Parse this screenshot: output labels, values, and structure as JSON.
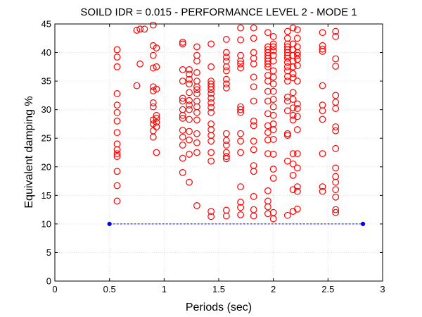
{
  "chart_data": {
    "type": "scatter",
    "title": "SOILD IDR = 0.015 - PERFORMANCE LEVEL 2 - MODE 1",
    "xlabel": "Periods (sec)",
    "ylabel": "Equivalent damping %",
    "xlim": [
      0,
      3
    ],
    "ylim": [
      0,
      45
    ],
    "xticks": [
      "0",
      "0.5",
      "1",
      "1.5",
      "2",
      "2.5",
      "3"
    ],
    "yticks": [
      "0",
      "5",
      "10",
      "15",
      "20",
      "25",
      "30",
      "35",
      "40",
      "45"
    ],
    "grid": true,
    "colors": {
      "scatter": "#ff0000",
      "line": "#0000ff"
    },
    "series": [
      {
        "type": "scatter",
        "marker": "circle-open",
        "color": "#ff0000",
        "points": [
          [
            0.57,
            40.5
          ],
          [
            0.57,
            39.2
          ],
          [
            0.57,
            37.5
          ],
          [
            0.57,
            32.8
          ],
          [
            0.57,
            30.8
          ],
          [
            0.57,
            29.5
          ],
          [
            0.57,
            28
          ],
          [
            0.57,
            26
          ],
          [
            0.57,
            24
          ],
          [
            0.57,
            23
          ],
          [
            0.57,
            22.3
          ],
          [
            0.57,
            21.8
          ],
          [
            0.57,
            19.2
          ],
          [
            0.57,
            16.7
          ],
          [
            0.57,
            14
          ],
          [
            0.75,
            34.2
          ],
          [
            0.75,
            43.9
          ],
          [
            0.78,
            44.1
          ],
          [
            0.78,
            38
          ],
          [
            0.82,
            44.1
          ],
          [
            0.9,
            44.8
          ],
          [
            0.9,
            41.2
          ],
          [
            0.9,
            39.5
          ],
          [
            0.9,
            37.3
          ],
          [
            0.9,
            34
          ],
          [
            0.9,
            33.3
          ],
          [
            0.9,
            31.2
          ],
          [
            0.9,
            30.5
          ],
          [
            0.9,
            28.2
          ],
          [
            0.9,
            27.5
          ],
          [
            0.9,
            26.3
          ],
          [
            0.9,
            25.2
          ],
          [
            0.93,
            40.8
          ],
          [
            0.93,
            37.5
          ],
          [
            0.93,
            33.6
          ],
          [
            0.93,
            29
          ],
          [
            0.93,
            28.5
          ],
          [
            0.93,
            27.8
          ],
          [
            0.93,
            27
          ],
          [
            0.93,
            22.5
          ],
          [
            1.17,
            41.8
          ],
          [
            1.17,
            37
          ],
          [
            1.17,
            35
          ],
          [
            1.17,
            32
          ],
          [
            1.17,
            31.5
          ],
          [
            1.17,
            30
          ],
          [
            1.17,
            29
          ],
          [
            1.17,
            28.5
          ],
          [
            1.17,
            26.4
          ],
          [
            1.17,
            25.2
          ],
          [
            1.17,
            23.8
          ],
          [
            1.17,
            21.5
          ],
          [
            1.17,
            19
          ],
          [
            1.17,
            41.5
          ],
          [
            1.23,
            37
          ],
          [
            1.23,
            36.2
          ],
          [
            1.23,
            35.3
          ],
          [
            1.23,
            34.5
          ],
          [
            1.23,
            33
          ],
          [
            1.23,
            31.6
          ],
          [
            1.23,
            30.8
          ],
          [
            1.23,
            30
          ],
          [
            1.23,
            28.3
          ],
          [
            1.23,
            26.2
          ],
          [
            1.23,
            24.7
          ],
          [
            1.23,
            22.2
          ],
          [
            1.23,
            17.3
          ],
          [
            1.3,
            41
          ],
          [
            1.3,
            39.5
          ],
          [
            1.3,
            38.5
          ],
          [
            1.3,
            36.5
          ],
          [
            1.3,
            35
          ],
          [
            1.3,
            34
          ],
          [
            1.3,
            33.5
          ],
          [
            1.3,
            32.8
          ],
          [
            1.3,
            31.5
          ],
          [
            1.3,
            30.5
          ],
          [
            1.3,
            29.5
          ],
          [
            1.3,
            28.2
          ],
          [
            1.3,
            25.8
          ],
          [
            1.3,
            24.2
          ],
          [
            1.3,
            22.5
          ],
          [
            1.3,
            13.2
          ],
          [
            1.43,
            41.5
          ],
          [
            1.43,
            37.5
          ],
          [
            1.43,
            35
          ],
          [
            1.43,
            34.5
          ],
          [
            1.43,
            34
          ],
          [
            1.43,
            33.5
          ],
          [
            1.43,
            32.8
          ],
          [
            1.43,
            32
          ],
          [
            1.43,
            31.2
          ],
          [
            1.43,
            30.4
          ],
          [
            1.43,
            29.5
          ],
          [
            1.43,
            27.5
          ],
          [
            1.43,
            26.5
          ],
          [
            1.43,
            25.5
          ],
          [
            1.43,
            24.5
          ],
          [
            1.43,
            22.5
          ],
          [
            1.43,
            21
          ],
          [
            1.43,
            12.2
          ],
          [
            1.43,
            11.3
          ],
          [
            1.57,
            42.3
          ],
          [
            1.57,
            40
          ],
          [
            1.57,
            39.2
          ],
          [
            1.57,
            38.5
          ],
          [
            1.57,
            37.5
          ],
          [
            1.57,
            36.8
          ],
          [
            1.57,
            35.3
          ],
          [
            1.57,
            34.5
          ],
          [
            1.57,
            33.8
          ],
          [
            1.57,
            25.8
          ],
          [
            1.57,
            24.6
          ],
          [
            1.57,
            23.8
          ],
          [
            1.57,
            22.5
          ],
          [
            1.57,
            21.8
          ],
          [
            1.57,
            21.4
          ],
          [
            1.57,
            12.4
          ],
          [
            1.57,
            11.4
          ],
          [
            1.7,
            44.3
          ],
          [
            1.7,
            42.2
          ],
          [
            1.7,
            39.5
          ],
          [
            1.7,
            38.5
          ],
          [
            1.7,
            38
          ],
          [
            1.7,
            37.3
          ],
          [
            1.7,
            30.5
          ],
          [
            1.7,
            30
          ],
          [
            1.7,
            29.5
          ],
          [
            1.7,
            25.8
          ],
          [
            1.7,
            24.5
          ],
          [
            1.7,
            22.5
          ],
          [
            1.7,
            16.5
          ],
          [
            1.7,
            13.8
          ],
          [
            1.7,
            12.9
          ],
          [
            1.7,
            11.6
          ],
          [
            1.82,
            44.3
          ],
          [
            1.82,
            42.5
          ],
          [
            1.82,
            40
          ],
          [
            1.82,
            39
          ],
          [
            1.82,
            38
          ],
          [
            1.82,
            35.7
          ],
          [
            1.82,
            34
          ],
          [
            1.82,
            31.5
          ],
          [
            1.82,
            28
          ],
          [
            1.82,
            27.2
          ],
          [
            1.82,
            24.5
          ],
          [
            1.82,
            23
          ],
          [
            1.82,
            20.2
          ],
          [
            1.82,
            19.2
          ],
          [
            1.82,
            14.8
          ],
          [
            1.82,
            12.5
          ],
          [
            1.82,
            11.4
          ],
          [
            1.95,
            43.5
          ],
          [
            1.95,
            41
          ],
          [
            1.95,
            40.5
          ],
          [
            1.95,
            40
          ],
          [
            1.95,
            39.5
          ],
          [
            1.95,
            39
          ],
          [
            1.95,
            38.5
          ],
          [
            1.95,
            38
          ],
          [
            1.95,
            37.5
          ],
          [
            1.95,
            36
          ],
          [
            1.95,
            35
          ],
          [
            1.95,
            33.2
          ],
          [
            1.95,
            31.5
          ],
          [
            1.95,
            29.3
          ],
          [
            1.95,
            27.2
          ],
          [
            1.95,
            26
          ],
          [
            1.95,
            24.7
          ],
          [
            1.95,
            22.3
          ],
          [
            1.95,
            15.8
          ],
          [
            1.95,
            14
          ],
          [
            1.95,
            13
          ],
          [
            1.95,
            11.8
          ],
          [
            2.0,
            42.8
          ],
          [
            2.0,
            41.5
          ],
          [
            2.0,
            41
          ],
          [
            2.0,
            40.3
          ],
          [
            2.0,
            39.5
          ],
          [
            2.0,
            38.5
          ],
          [
            2.0,
            36.8
          ],
          [
            2.0,
            35.7
          ],
          [
            2.0,
            34.5
          ],
          [
            2.0,
            33.2
          ],
          [
            2.0,
            31.8
          ],
          [
            2.0,
            30.5
          ],
          [
            2.0,
            29
          ],
          [
            2.0,
            27.5
          ],
          [
            2.0,
            26.5
          ],
          [
            2.0,
            24.8
          ],
          [
            2.0,
            22.2
          ],
          [
            2.0,
            19.6
          ],
          [
            2.0,
            18
          ],
          [
            2.0,
            12
          ],
          [
            2.0,
            10.9
          ],
          [
            2.13,
            43.7
          ],
          [
            2.13,
            42.5
          ],
          [
            2.13,
            41.5
          ],
          [
            2.13,
            41
          ],
          [
            2.13,
            40.5
          ],
          [
            2.13,
            40
          ],
          [
            2.13,
            39.5
          ],
          [
            2.13,
            39
          ],
          [
            2.13,
            38.3
          ],
          [
            2.13,
            37.5
          ],
          [
            2.13,
            36.8
          ],
          [
            2.13,
            35.8
          ],
          [
            2.13,
            35
          ],
          [
            2.13,
            32.2
          ],
          [
            2.13,
            31.5
          ],
          [
            2.13,
            29.8
          ],
          [
            2.13,
            25.8
          ],
          [
            2.13,
            25.5
          ],
          [
            2.13,
            21
          ],
          [
            2.13,
            11.5
          ],
          [
            2.18,
            44.3
          ],
          [
            2.18,
            41.5
          ],
          [
            2.18,
            40.5
          ],
          [
            2.18,
            39.5
          ],
          [
            2.18,
            38.5
          ],
          [
            2.18,
            37.5
          ],
          [
            2.18,
            36.3
          ],
          [
            2.18,
            35.6
          ],
          [
            2.18,
            33
          ],
          [
            2.18,
            31.8
          ],
          [
            2.18,
            30.3
          ],
          [
            2.18,
            29
          ],
          [
            2.18,
            28.2
          ],
          [
            2.18,
            22.3
          ],
          [
            2.18,
            20.5
          ],
          [
            2.18,
            18.5
          ],
          [
            2.18,
            16
          ],
          [
            2.18,
            12.2
          ],
          [
            2.22,
            44
          ],
          [
            2.22,
            42.5
          ],
          [
            2.22,
            41
          ],
          [
            2.22,
            40
          ],
          [
            2.22,
            39.5
          ],
          [
            2.22,
            38.8
          ],
          [
            2.22,
            37.7
          ],
          [
            2.22,
            35
          ],
          [
            2.22,
            31
          ],
          [
            2.22,
            30.2
          ],
          [
            2.22,
            28.8
          ],
          [
            2.22,
            26.5
          ],
          [
            2.22,
            22.3
          ],
          [
            2.22,
            19.8
          ],
          [
            2.22,
            16.5
          ],
          [
            2.22,
            15.7
          ],
          [
            2.22,
            12.6
          ],
          [
            2.45,
            43.5
          ],
          [
            2.45,
            41.2
          ],
          [
            2.45,
            40.6
          ],
          [
            2.45,
            40.2
          ],
          [
            2.45,
            34.2
          ],
          [
            2.45,
            30.8
          ],
          [
            2.45,
            29.8
          ],
          [
            2.45,
            28.3
          ],
          [
            2.45,
            22.3
          ],
          [
            2.45,
            16.5
          ],
          [
            2.45,
            15.7
          ],
          [
            2.57,
            43.7
          ],
          [
            2.57,
            42.8
          ],
          [
            2.57,
            38.9
          ],
          [
            2.57,
            37.6
          ],
          [
            2.57,
            32.5
          ],
          [
            2.57,
            31.3
          ],
          [
            2.57,
            30.2
          ],
          [
            2.57,
            27
          ],
          [
            2.57,
            26.3
          ],
          [
            2.57,
            23.2
          ],
          [
            2.57,
            19.8
          ],
          [
            2.57,
            18.3
          ],
          [
            2.57,
            17.3
          ],
          [
            2.57,
            16
          ],
          [
            2.57,
            14.7
          ],
          [
            2.57,
            12.5
          ],
          [
            2.57,
            12
          ]
        ]
      },
      {
        "type": "line",
        "marker": "dot",
        "color": "#0000ff",
        "points": [
          [
            0.5,
            10
          ],
          [
            2.82,
            10
          ]
        ]
      }
    ]
  }
}
